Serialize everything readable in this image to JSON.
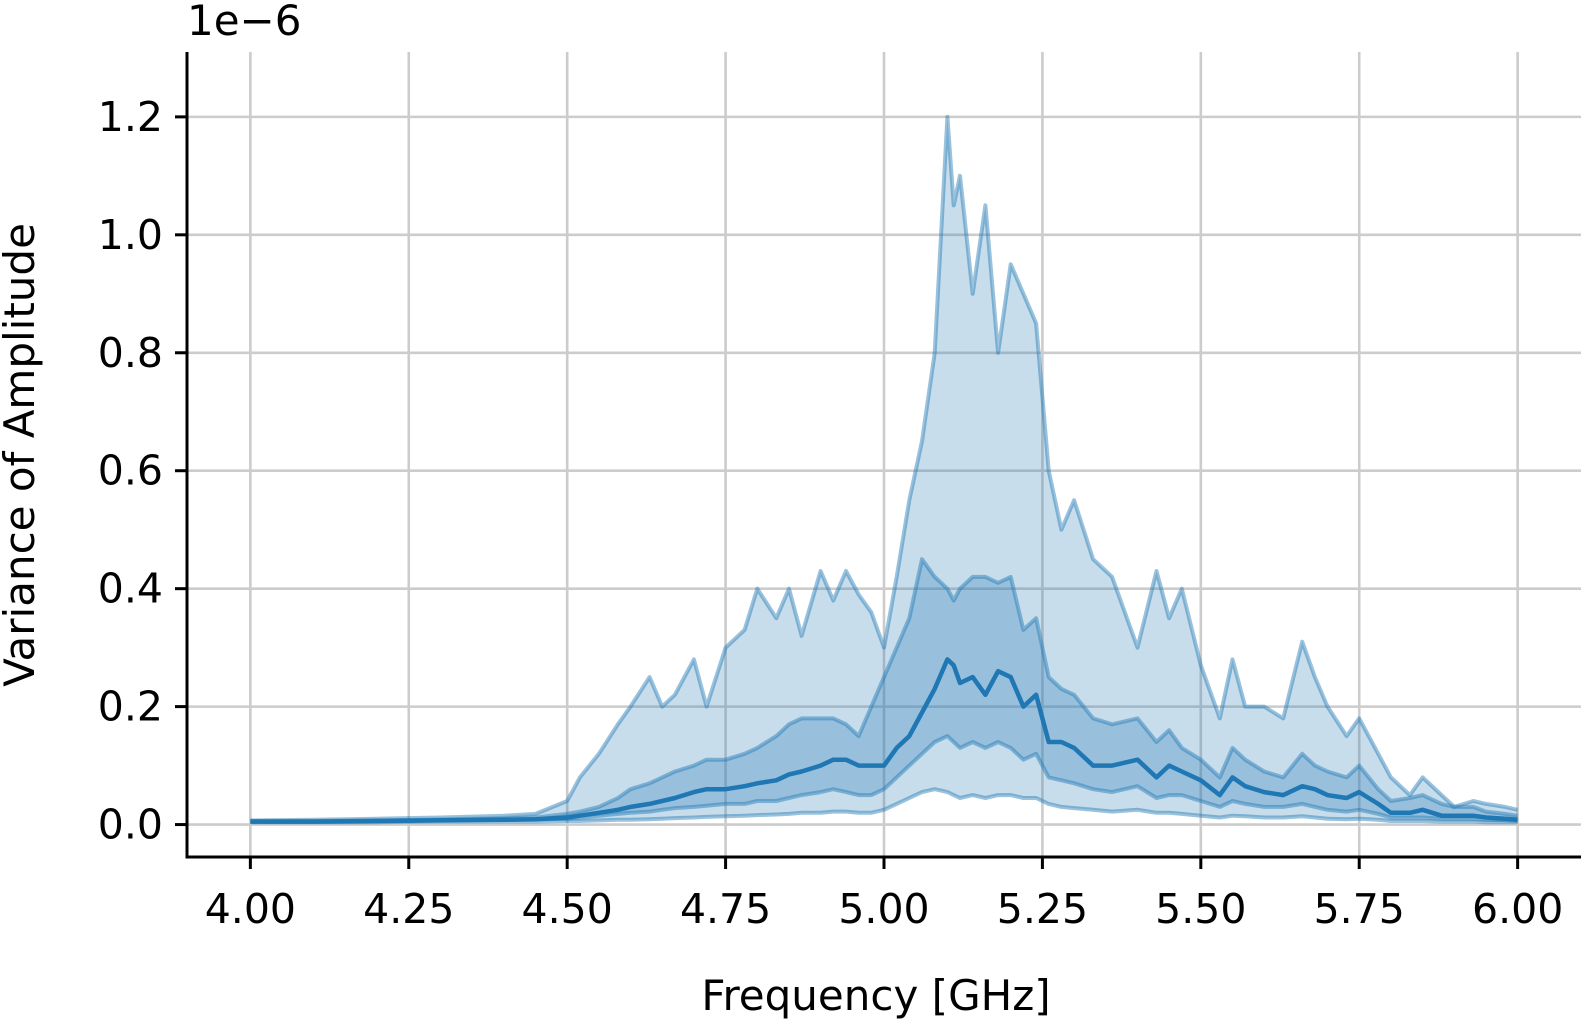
{
  "chart_data": {
    "type": "area",
    "xlabel": "Frequency [GHz]",
    "ylabel": "Variance of Amplitude",
    "offset_label": "1e−6",
    "xlim": [
      3.9,
      6.1
    ],
    "ylim": [
      -0.055,
      1.31
    ],
    "y_scale_factor": 1e-06,
    "grid": true,
    "x_ticks": [
      4.0,
      4.25,
      4.5,
      4.75,
      5.0,
      5.25,
      5.5,
      5.75,
      6.0
    ],
    "x_tick_labels": [
      "4.00",
      "4.25",
      "4.50",
      "4.75",
      "5.00",
      "5.25",
      "5.50",
      "5.75",
      "6.00"
    ],
    "y_ticks": [
      0.0,
      0.2,
      0.4,
      0.6,
      0.8,
      1.0,
      1.2
    ],
    "y_tick_labels": [
      "0.0",
      "0.2",
      "0.4",
      "0.6",
      "0.8",
      "1.0",
      "1.2"
    ],
    "colors": {
      "line": "#1f77b4",
      "band": "#1f77b4"
    },
    "x": [
      4.0,
      4.1,
      4.2,
      4.3,
      4.4,
      4.45,
      4.5,
      4.52,
      4.55,
      4.58,
      4.6,
      4.63,
      4.65,
      4.67,
      4.7,
      4.72,
      4.75,
      4.78,
      4.8,
      4.83,
      4.85,
      4.87,
      4.9,
      4.92,
      4.94,
      4.96,
      4.98,
      5.0,
      5.02,
      5.04,
      5.06,
      5.08,
      5.1,
      5.11,
      5.12,
      5.14,
      5.16,
      5.18,
      5.2,
      5.22,
      5.24,
      5.26,
      5.28,
      5.3,
      5.33,
      5.36,
      5.4,
      5.43,
      5.45,
      5.47,
      5.5,
      5.53,
      5.55,
      5.57,
      5.6,
      5.63,
      5.66,
      5.68,
      5.7,
      5.73,
      5.75,
      5.78,
      5.8,
      5.83,
      5.85,
      5.88,
      5.9,
      5.93,
      5.95,
      5.98,
      6.0
    ],
    "series": [
      {
        "values": [
          0.005,
          0.005,
          0.006,
          0.007,
          0.008,
          0.009,
          0.012,
          0.015,
          0.02,
          0.025,
          0.03,
          0.035,
          0.04,
          0.045,
          0.055,
          0.06,
          0.06,
          0.065,
          0.07,
          0.075,
          0.085,
          0.09,
          0.1,
          0.11,
          0.11,
          0.1,
          0.1,
          0.1,
          0.13,
          0.15,
          0.19,
          0.23,
          0.28,
          0.27,
          0.24,
          0.25,
          0.22,
          0.26,
          0.25,
          0.2,
          0.22,
          0.14,
          0.14,
          0.13,
          0.1,
          0.1,
          0.11,
          0.08,
          0.1,
          0.09,
          0.075,
          0.05,
          0.08,
          0.065,
          0.055,
          0.05,
          0.065,
          0.06,
          0.05,
          0.045,
          0.055,
          0.035,
          0.02,
          0.02,
          0.025,
          0.015,
          0.015,
          0.015,
          0.012,
          0.01,
          0.008
        ]
      }
    ],
    "bands": [
      {
        "lower": [
          0.005,
          0.005,
          0.006,
          0.007,
          0.008,
          0.009,
          0.01,
          0.012,
          0.015,
          0.018,
          0.02,
          0.022,
          0.025,
          0.028,
          0.03,
          0.032,
          0.035,
          0.035,
          0.04,
          0.04,
          0.045,
          0.05,
          0.055,
          0.06,
          0.055,
          0.05,
          0.05,
          0.06,
          0.08,
          0.1,
          0.12,
          0.14,
          0.15,
          0.14,
          0.13,
          0.14,
          0.13,
          0.14,
          0.13,
          0.11,
          0.12,
          0.08,
          0.075,
          0.07,
          0.06,
          0.055,
          0.065,
          0.045,
          0.05,
          0.05,
          0.04,
          0.03,
          0.04,
          0.035,
          0.03,
          0.03,
          0.035,
          0.03,
          0.025,
          0.022,
          0.025,
          0.018,
          0.012,
          0.012,
          0.012,
          0.01,
          0.01,
          0.01,
          0.008,
          0.007,
          0.006
        ],
        "upper": [
          0.006,
          0.006,
          0.007,
          0.008,
          0.01,
          0.012,
          0.018,
          0.022,
          0.03,
          0.045,
          0.06,
          0.07,
          0.08,
          0.09,
          0.1,
          0.11,
          0.11,
          0.12,
          0.13,
          0.15,
          0.17,
          0.18,
          0.18,
          0.18,
          0.17,
          0.15,
          0.2,
          0.25,
          0.3,
          0.35,
          0.45,
          0.42,
          0.4,
          0.38,
          0.4,
          0.42,
          0.42,
          0.41,
          0.42,
          0.33,
          0.35,
          0.25,
          0.23,
          0.22,
          0.18,
          0.17,
          0.18,
          0.14,
          0.16,
          0.13,
          0.11,
          0.08,
          0.13,
          0.11,
          0.09,
          0.08,
          0.12,
          0.1,
          0.09,
          0.08,
          0.1,
          0.06,
          0.04,
          0.045,
          0.05,
          0.035,
          0.03,
          0.03,
          0.022,
          0.018,
          0.015
        ]
      },
      {
        "lower": [
          0.004,
          0.004,
          0.004,
          0.005,
          0.005,
          0.005,
          0.006,
          0.006,
          0.007,
          0.008,
          0.008,
          0.009,
          0.01,
          0.011,
          0.012,
          0.013,
          0.014,
          0.015,
          0.016,
          0.017,
          0.018,
          0.02,
          0.02,
          0.022,
          0.022,
          0.02,
          0.02,
          0.025,
          0.035,
          0.045,
          0.055,
          0.06,
          0.055,
          0.05,
          0.045,
          0.05,
          0.045,
          0.05,
          0.05,
          0.045,
          0.045,
          0.035,
          0.03,
          0.028,
          0.025,
          0.022,
          0.025,
          0.02,
          0.02,
          0.018,
          0.015,
          0.012,
          0.015,
          0.014,
          0.012,
          0.012,
          0.014,
          0.012,
          0.01,
          0.009,
          0.01,
          0.008,
          0.006,
          0.006,
          0.006,
          0.005,
          0.005,
          0.005,
          0.004,
          0.004,
          0.004
        ],
        "upper": [
          0.007,
          0.008,
          0.01,
          0.012,
          0.015,
          0.018,
          0.04,
          0.08,
          0.12,
          0.17,
          0.2,
          0.25,
          0.2,
          0.22,
          0.28,
          0.2,
          0.3,
          0.33,
          0.4,
          0.35,
          0.4,
          0.32,
          0.43,
          0.38,
          0.43,
          0.39,
          0.36,
          0.3,
          0.42,
          0.55,
          0.65,
          0.8,
          1.2,
          1.05,
          1.1,
          0.9,
          1.05,
          0.8,
          0.95,
          0.9,
          0.85,
          0.6,
          0.5,
          0.55,
          0.45,
          0.42,
          0.3,
          0.43,
          0.35,
          0.4,
          0.27,
          0.18,
          0.28,
          0.2,
          0.2,
          0.18,
          0.31,
          0.25,
          0.2,
          0.15,
          0.18,
          0.12,
          0.08,
          0.05,
          0.08,
          0.05,
          0.03,
          0.04,
          0.035,
          0.03,
          0.025
        ]
      }
    ]
  }
}
